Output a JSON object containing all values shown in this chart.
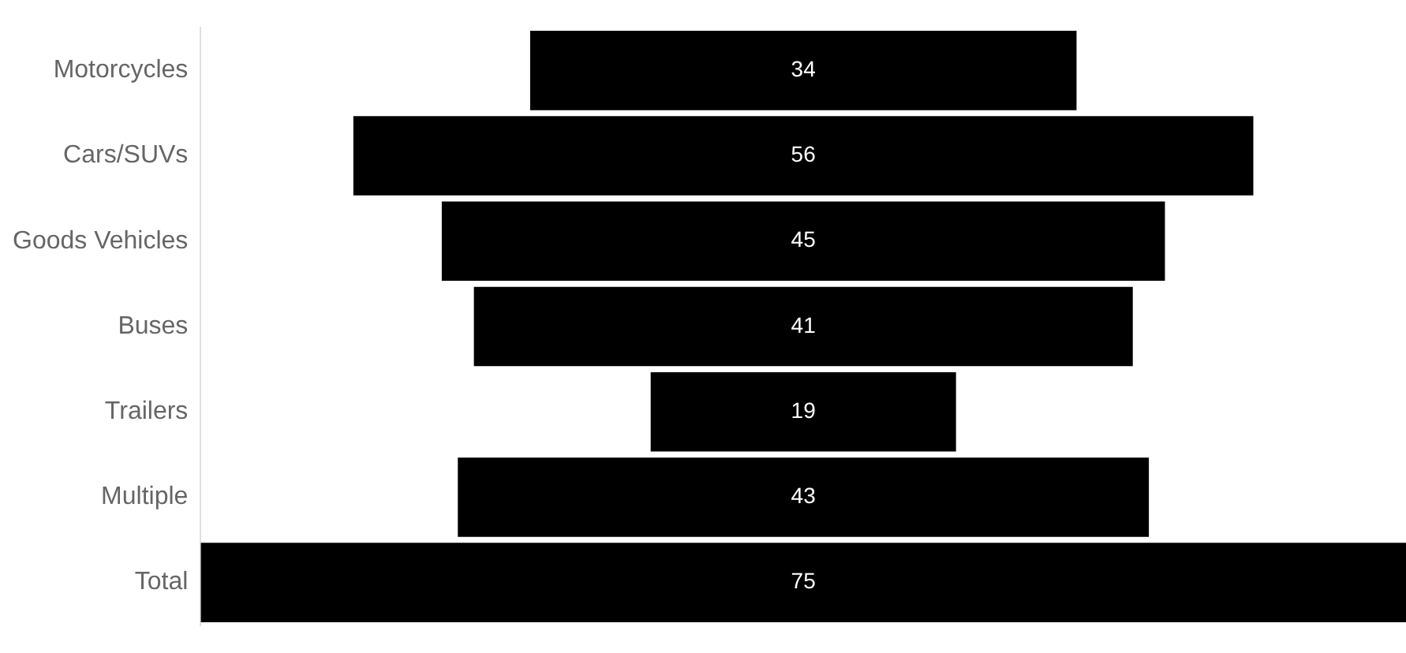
{
  "chart_data": {
    "type": "other",
    "categories": [
      "Motorcycles",
      "Cars/SUVs",
      "Goods Vehicles",
      "Buses",
      "Trailers",
      "Multiple",
      "Total"
    ],
    "values": [
      34,
      56,
      45,
      41,
      19,
      43,
      75
    ],
    "color": "#000000",
    "data_labels": true
  }
}
